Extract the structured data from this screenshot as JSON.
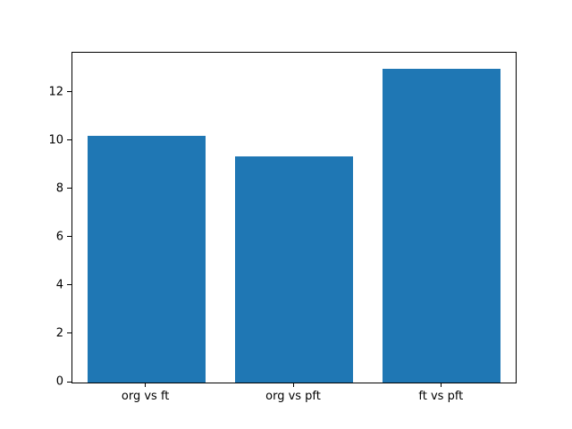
{
  "chart_data": {
    "type": "bar",
    "title": "",
    "xlabel": "",
    "ylabel": "",
    "categories": [
      "org vs ft",
      "org vs pft",
      "ft vs pft"
    ],
    "values": [
      10.2,
      9.35,
      13.0
    ],
    "ylim": [
      0,
      13.65
    ],
    "yticks": [
      0,
      2,
      4,
      6,
      8,
      10,
      12
    ],
    "grid": false,
    "legend": false,
    "bar_color": "#1f77b4",
    "bar_width_fraction": 0.8,
    "axis_color": "#000000",
    "background_color": "#ffffff"
  }
}
